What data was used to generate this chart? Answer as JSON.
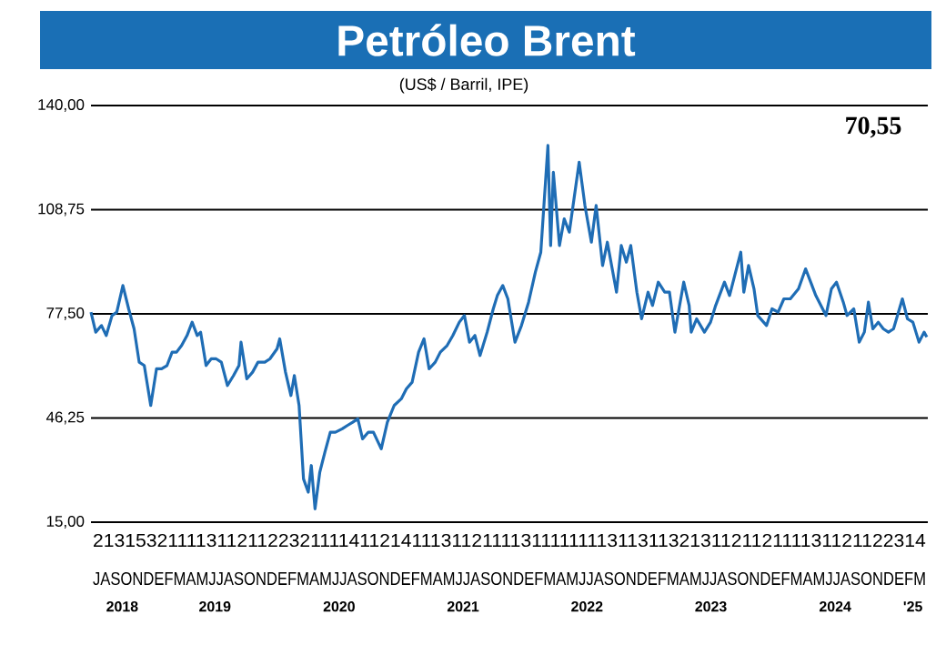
{
  "chart_data": {
    "type": "line",
    "title": "Petróleo Brent",
    "subtitle": "(US$ / Barril, IPE)",
    "annotations": [
      "70,55",
      "2131532111131121122321111411214111311211113111111113113113213112112111131121122314",
      "JASONDEFMAMJJASONDEFMAMJJASONDEFMAMJJASONDEFMAMJJASONDEFMAMJJASONDEFMAMJJASONDEFM"
    ],
    "x": [
      "2018-07-01",
      "2018-07-15",
      "2018-08-01",
      "2018-08-15",
      "2018-09-01",
      "2018-09-15",
      "2018-10-03",
      "2018-10-20",
      "2018-11-05",
      "2018-11-20",
      "2018-12-05",
      "2018-12-24",
      "2019-01-10",
      "2019-01-25",
      "2019-02-10",
      "2019-02-25",
      "2019-03-10",
      "2019-03-25",
      "2019-04-10",
      "2019-04-25",
      "2019-05-10",
      "2019-05-20",
      "2019-06-05",
      "2019-06-20",
      "2019-07-05",
      "2019-07-20",
      "2019-08-07",
      "2019-08-25",
      "2019-09-10",
      "2019-09-16",
      "2019-10-03",
      "2019-10-20",
      "2019-11-05",
      "2019-11-25",
      "2019-12-10",
      "2019-12-31",
      "2020-01-08",
      "2020-01-25",
      "2020-02-10",
      "2020-02-20",
      "2020-03-05",
      "2020-03-18",
      "2020-04-01",
      "2020-04-10",
      "2020-04-21",
      "2020-05-05",
      "2020-05-20",
      "2020-06-05",
      "2020-06-20",
      "2020-07-10",
      "2020-07-25",
      "2020-08-10",
      "2020-08-25",
      "2020-09-08",
      "2020-09-25",
      "2020-10-10",
      "2020-11-02",
      "2020-11-20",
      "2020-12-10",
      "2020-12-31",
      "2021-01-15",
      "2021-02-01",
      "2021-02-20",
      "2021-03-08",
      "2021-03-23",
      "2021-04-10",
      "2021-04-25",
      "2021-05-15",
      "2021-06-01",
      "2021-06-20",
      "2021-07-05",
      "2021-07-20",
      "2021-08-05",
      "2021-08-20",
      "2021-09-10",
      "2021-09-28",
      "2021-10-10",
      "2021-10-26",
      "2021-11-10",
      "2021-12-01",
      "2021-12-20",
      "2022-01-10",
      "2022-01-30",
      "2022-02-15",
      "2022-03-08",
      "2022-03-16",
      "2022-03-24",
      "2022-04-11",
      "2022-04-25",
      "2022-05-10",
      "2022-06-08",
      "2022-06-25",
      "2022-07-14",
      "2022-07-28",
      "2022-08-16",
      "2022-08-30",
      "2022-09-26",
      "2022-10-10",
      "2022-10-25",
      "2022-11-07",
      "2022-11-25",
      "2022-12-09",
      "2022-12-28",
      "2023-01-10",
      "2023-01-27",
      "2023-02-15",
      "2023-03-01",
      "2023-03-17",
      "2023-04-12",
      "2023-04-28",
      "2023-05-04",
      "2023-05-20",
      "2023-06-12",
      "2023-06-30",
      "2023-07-15",
      "2023-08-10",
      "2023-08-25",
      "2023-09-27",
      "2023-10-06",
      "2023-10-20",
      "2023-11-05",
      "2023-11-16",
      "2023-12-12",
      "2023-12-28",
      "2024-01-15",
      "2024-02-01",
      "2024-02-20",
      "2024-03-15",
      "2024-04-05",
      "2024-04-20",
      "2024-05-05",
      "2024-06-04",
      "2024-06-20",
      "2024-07-05",
      "2024-07-25",
      "2024-08-05",
      "2024-08-25",
      "2024-09-10",
      "2024-09-25",
      "2024-10-07",
      "2024-10-20",
      "2024-11-05",
      "2024-11-20",
      "2024-12-05",
      "2024-12-20",
      "2025-01-15",
      "2025-01-30",
      "2025-02-15",
      "2025-03-05",
      "2025-03-20",
      "2025-03-28"
    ],
    "series": [
      {
        "color": "#1f6db5",
        "values": [
          78,
          72,
          74,
          71,
          77,
          78,
          86,
          79,
          73,
          63,
          62,
          50,
          61,
          61,
          62,
          66,
          66,
          68,
          71,
          75,
          71,
          72,
          62,
          64,
          64,
          63,
          56,
          59,
          62,
          69,
          58,
          60,
          63,
          63,
          64,
          67,
          70,
          60,
          53,
          59,
          50,
          28,
          24,
          32,
          19,
          30,
          36,
          42,
          42,
          43,
          44,
          45,
          46,
          40,
          42,
          42,
          37,
          45,
          50,
          52,
          55,
          57,
          66,
          70,
          61,
          63,
          66,
          68,
          71,
          75,
          77,
          69,
          71,
          65,
          72,
          79,
          83,
          86,
          82,
          69,
          74,
          81,
          90,
          96,
          128,
          98,
          120,
          98,
          106,
          102,
          123,
          110,
          99,
          110,
          92,
          99,
          84,
          98,
          93,
          98,
          84,
          76,
          84,
          80,
          87,
          84,
          84,
          72,
          87,
          80,
          72,
          76,
          72,
          75,
          80,
          87,
          83,
          96,
          84,
          92,
          85,
          77,
          74,
          79,
          78,
          82,
          82,
          85,
          91,
          87,
          83,
          77,
          85,
          87,
          81,
          77,
          79,
          69,
          72,
          81,
          73,
          75,
          73,
          72,
          73,
          82,
          76,
          75,
          69,
          72,
          70.55
        ]
      }
    ],
    "xlim": [
      "2018-07-01",
      "2025-03-31"
    ],
    "xticks": [
      {
        "value": "2018-10-01",
        "label": "2018"
      },
      {
        "value": "2019-07-01",
        "label": "2019"
      },
      {
        "value": "2020-07-01",
        "label": "2020"
      },
      {
        "value": "2021-07-01",
        "label": "2021"
      },
      {
        "value": "2022-07-01",
        "label": "2022"
      },
      {
        "value": "2023-07-01",
        "label": "2023"
      },
      {
        "value": "2024-07-01",
        "label": "2024"
      },
      {
        "value": "2025-02-15",
        "label": "'25"
      }
    ],
    "ylim": [
      15,
      140
    ],
    "yticks": [
      {
        "value": 15,
        "label": "15,00"
      },
      {
        "value": 46.25,
        "label": "46,25"
      },
      {
        "value": 77.5,
        "label": "77,50"
      },
      {
        "value": 108.75,
        "label": "108,75"
      },
      {
        "value": 140,
        "label": "140,00"
      }
    ],
    "grid": "y",
    "marker": "none",
    "line_style": "solid"
  }
}
